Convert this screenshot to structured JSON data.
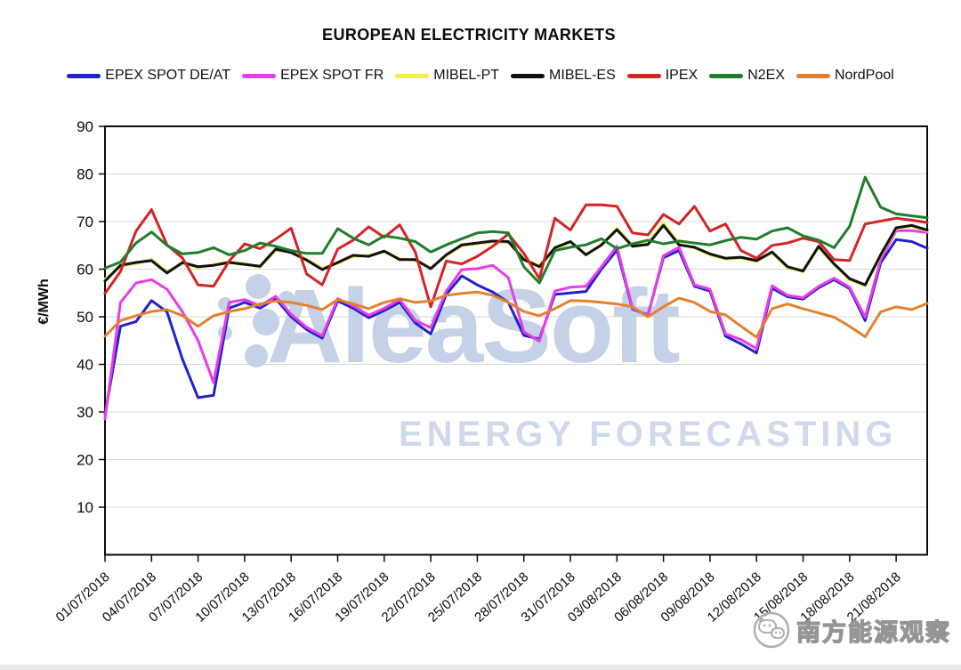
{
  "title": "EUROPEAN ELECTRICITY MARKETS",
  "watermark": {
    "brand": "AleaSoft",
    "tagline": "ENERGY FORECASTING",
    "stamp": "南方能源观察"
  },
  "chart_data": {
    "type": "line",
    "title": "EUROPEAN ELECTRICITY MARKETS",
    "xlabel": "",
    "ylabel": "€/MWh",
    "ylim": [
      0,
      90
    ],
    "y_ticks": [
      10,
      20,
      30,
      40,
      50,
      60,
      70,
      80,
      90
    ],
    "grid": "horizontal",
    "legend_position": "top",
    "x_tick_every_days": 3,
    "x_tick_labels": [
      "01/07/2018",
      "04/07/2018",
      "07/07/2018",
      "10/07/2018",
      "13/07/2018",
      "16/07/2018",
      "19/07/2018",
      "22/07/2018",
      "25/07/2018",
      "28/07/2018",
      "31/07/2018",
      "03/08/2018",
      "06/08/2018",
      "09/08/2018",
      "12/08/2018",
      "15/08/2018",
      "18/08/2018",
      "21/08/2018"
    ],
    "dates": [
      "01/07/2018",
      "02/07/2018",
      "03/07/2018",
      "04/07/2018",
      "05/07/2018",
      "06/07/2018",
      "07/07/2018",
      "08/07/2018",
      "09/07/2018",
      "10/07/2018",
      "11/07/2018",
      "12/07/2018",
      "13/07/2018",
      "14/07/2018",
      "15/07/2018",
      "16/07/2018",
      "17/07/2018",
      "18/07/2018",
      "19/07/2018",
      "20/07/2018",
      "21/07/2018",
      "22/07/2018",
      "23/07/2018",
      "24/07/2018",
      "25/07/2018",
      "26/07/2018",
      "27/07/2018",
      "28/07/2018",
      "29/07/2018",
      "30/07/2018",
      "31/07/2018",
      "01/08/2018",
      "02/08/2018",
      "03/08/2018",
      "04/08/2018",
      "05/08/2018",
      "06/08/2018",
      "07/08/2018",
      "08/08/2018",
      "09/08/2018",
      "10/08/2018",
      "11/08/2018",
      "12/08/2018",
      "13/08/2018",
      "14/08/2018",
      "15/08/2018",
      "16/08/2018",
      "17/08/2018",
      "18/08/2018",
      "19/08/2018",
      "20/08/2018",
      "21/08/2018",
      "22/08/2018",
      "23/08/2018"
    ],
    "series": [
      {
        "name": "EPEX SPOT DE/AT",
        "color": "#2222cc",
        "values": [
          29.5,
          48,
          49,
          53.4,
          51,
          41,
          33,
          33.5,
          51.8,
          53,
          51.8,
          53.8,
          50,
          47.3,
          45.5,
          53.3,
          51.8,
          49.8,
          51.3,
          53,
          48.7,
          46.4,
          54.7,
          58.6,
          56.7,
          55.2,
          53,
          46.1,
          45.3,
          54.7,
          55,
          55.3,
          60,
          64,
          51.6,
          50.4,
          62.4,
          63.9,
          56.4,
          55.4,
          45.9,
          44.3,
          42.4,
          56,
          54.2,
          53.7,
          56.1,
          57.8,
          55.9,
          49.2,
          61.3,
          66.2,
          65.8,
          64.4
        ]
      },
      {
        "name": "EPEX SPOT FR",
        "color": "#e83ce8",
        "values": [
          28.5,
          53,
          57.1,
          57.8,
          55.8,
          51,
          45,
          36.2,
          53,
          53.6,
          52.3,
          54.3,
          50.5,
          47.8,
          46,
          53.8,
          52.3,
          50.3,
          51.8,
          53.6,
          49.2,
          47.7,
          55.4,
          59.9,
          60.1,
          60.8,
          58.2,
          46.8,
          44.9,
          55.4,
          56.2,
          56.4,
          60.5,
          64.8,
          51.8,
          50.2,
          62.8,
          64.6,
          56.7,
          55.8,
          46.4,
          45.2,
          43.3,
          56.5,
          54.5,
          54,
          56.4,
          58.1,
          56.2,
          49.9,
          62,
          68.1,
          68.1,
          67.7
        ]
      },
      {
        "name": "MIBEL-PT",
        "color": "#f0ef45",
        "values": [
          57.9,
          60.5,
          61.2,
          62.1,
          59.5,
          61.2,
          60.3,
          61,
          61.6,
          61.2,
          60.4,
          64,
          63.7,
          62.1,
          60.2,
          61.2,
          62.7,
          62.9,
          63.6,
          62.2,
          61.8,
          60.3,
          62.8,
          64.9,
          65.3,
          65.7,
          65.6,
          62.2,
          60.7,
          64.3,
          65.6,
          63.2,
          64.9,
          68.6,
          65,
          65.4,
          69.8,
          65.4,
          64.4,
          63,
          62.1,
          62.3,
          61.6,
          63.4,
          60.3,
          59.4,
          64.6,
          60.9,
          57.8,
          56.5,
          62.8,
          68.5,
          69,
          68
        ]
      },
      {
        "name": "MIBEL-ES",
        "color": "#111111",
        "values": [
          57.5,
          60.8,
          61.4,
          61.8,
          59.2,
          61.4,
          60.5,
          60.8,
          61.4,
          61,
          60.6,
          64.2,
          63.5,
          61.9,
          59.9,
          61.4,
          62.9,
          62.7,
          63.8,
          62,
          62,
          60.1,
          63,
          65.1,
          65.5,
          65.9,
          65.8,
          62,
          60.5,
          64.5,
          65.8,
          63,
          65.1,
          68.3,
          64.8,
          65.2,
          69.2,
          65.1,
          64.6,
          63.2,
          62.3,
          62.5,
          61.8,
          63.6,
          60.5,
          59.6,
          64.8,
          61.1,
          58,
          56.7,
          63,
          68.7,
          69.2,
          68.2
        ]
      },
      {
        "name": "IPEX",
        "color": "#d42424",
        "values": [
          54.9,
          59.5,
          68,
          72.5,
          65.1,
          62.3,
          56.7,
          56.4,
          61.7,
          65.3,
          64.3,
          66.3,
          68.6,
          59,
          56.7,
          64.2,
          66.1,
          68.9,
          66.7,
          69.3,
          63.6,
          52.1,
          61.7,
          61.1,
          62.7,
          64.8,
          67.4,
          63.3,
          58,
          70.7,
          68.2,
          73.5,
          73.5,
          73.2,
          67.6,
          67.2,
          71.5,
          69.5,
          73.2,
          68,
          69.5,
          63.9,
          62.3,
          65,
          65.5,
          66.5,
          65.8,
          62,
          61.8,
          69.5,
          70.1,
          70.7,
          70.3,
          69.8
        ]
      },
      {
        "name": "N2EX",
        "color": "#1f7d2c",
        "values": [
          60.2,
          61.5,
          65.5,
          67.8,
          65,
          63.2,
          63.5,
          64.5,
          63,
          63.9,
          65.5,
          64.8,
          63.9,
          63.3,
          63.3,
          68.5,
          66.5,
          65.1,
          67,
          66.5,
          65.8,
          63.6,
          65.1,
          66.4,
          67.6,
          67.9,
          67.6,
          60.5,
          57.1,
          63.9,
          64.6,
          65.1,
          66.4,
          64.3,
          65.3,
          66.1,
          65.3,
          65.9,
          65.5,
          65.1,
          66,
          66.7,
          66.3,
          68,
          68.7,
          67,
          66.1,
          64.5,
          69,
          79.3,
          73,
          71.6,
          71.2,
          70.8
        ]
      },
      {
        "name": "NordPool",
        "color": "#e3822e",
        "values": [
          45.9,
          49.2,
          50.2,
          51.1,
          51.5,
          50.2,
          48,
          50.2,
          51.1,
          51.7,
          52.7,
          53.3,
          53,
          52.4,
          51.5,
          53.6,
          52.7,
          51.7,
          53,
          53.8,
          53,
          53.3,
          54.5,
          54.9,
          55.2,
          54.5,
          53,
          51.1,
          50.2,
          51.7,
          53.4,
          53.3,
          53,
          52.7,
          52.1,
          50,
          52.1,
          53.9,
          53,
          51.1,
          50.4,
          48,
          45.7,
          51.7,
          52.7,
          51.7,
          50.8,
          49.9,
          48,
          45.8,
          51,
          52.1,
          51.5,
          52.8
        ]
      }
    ]
  }
}
